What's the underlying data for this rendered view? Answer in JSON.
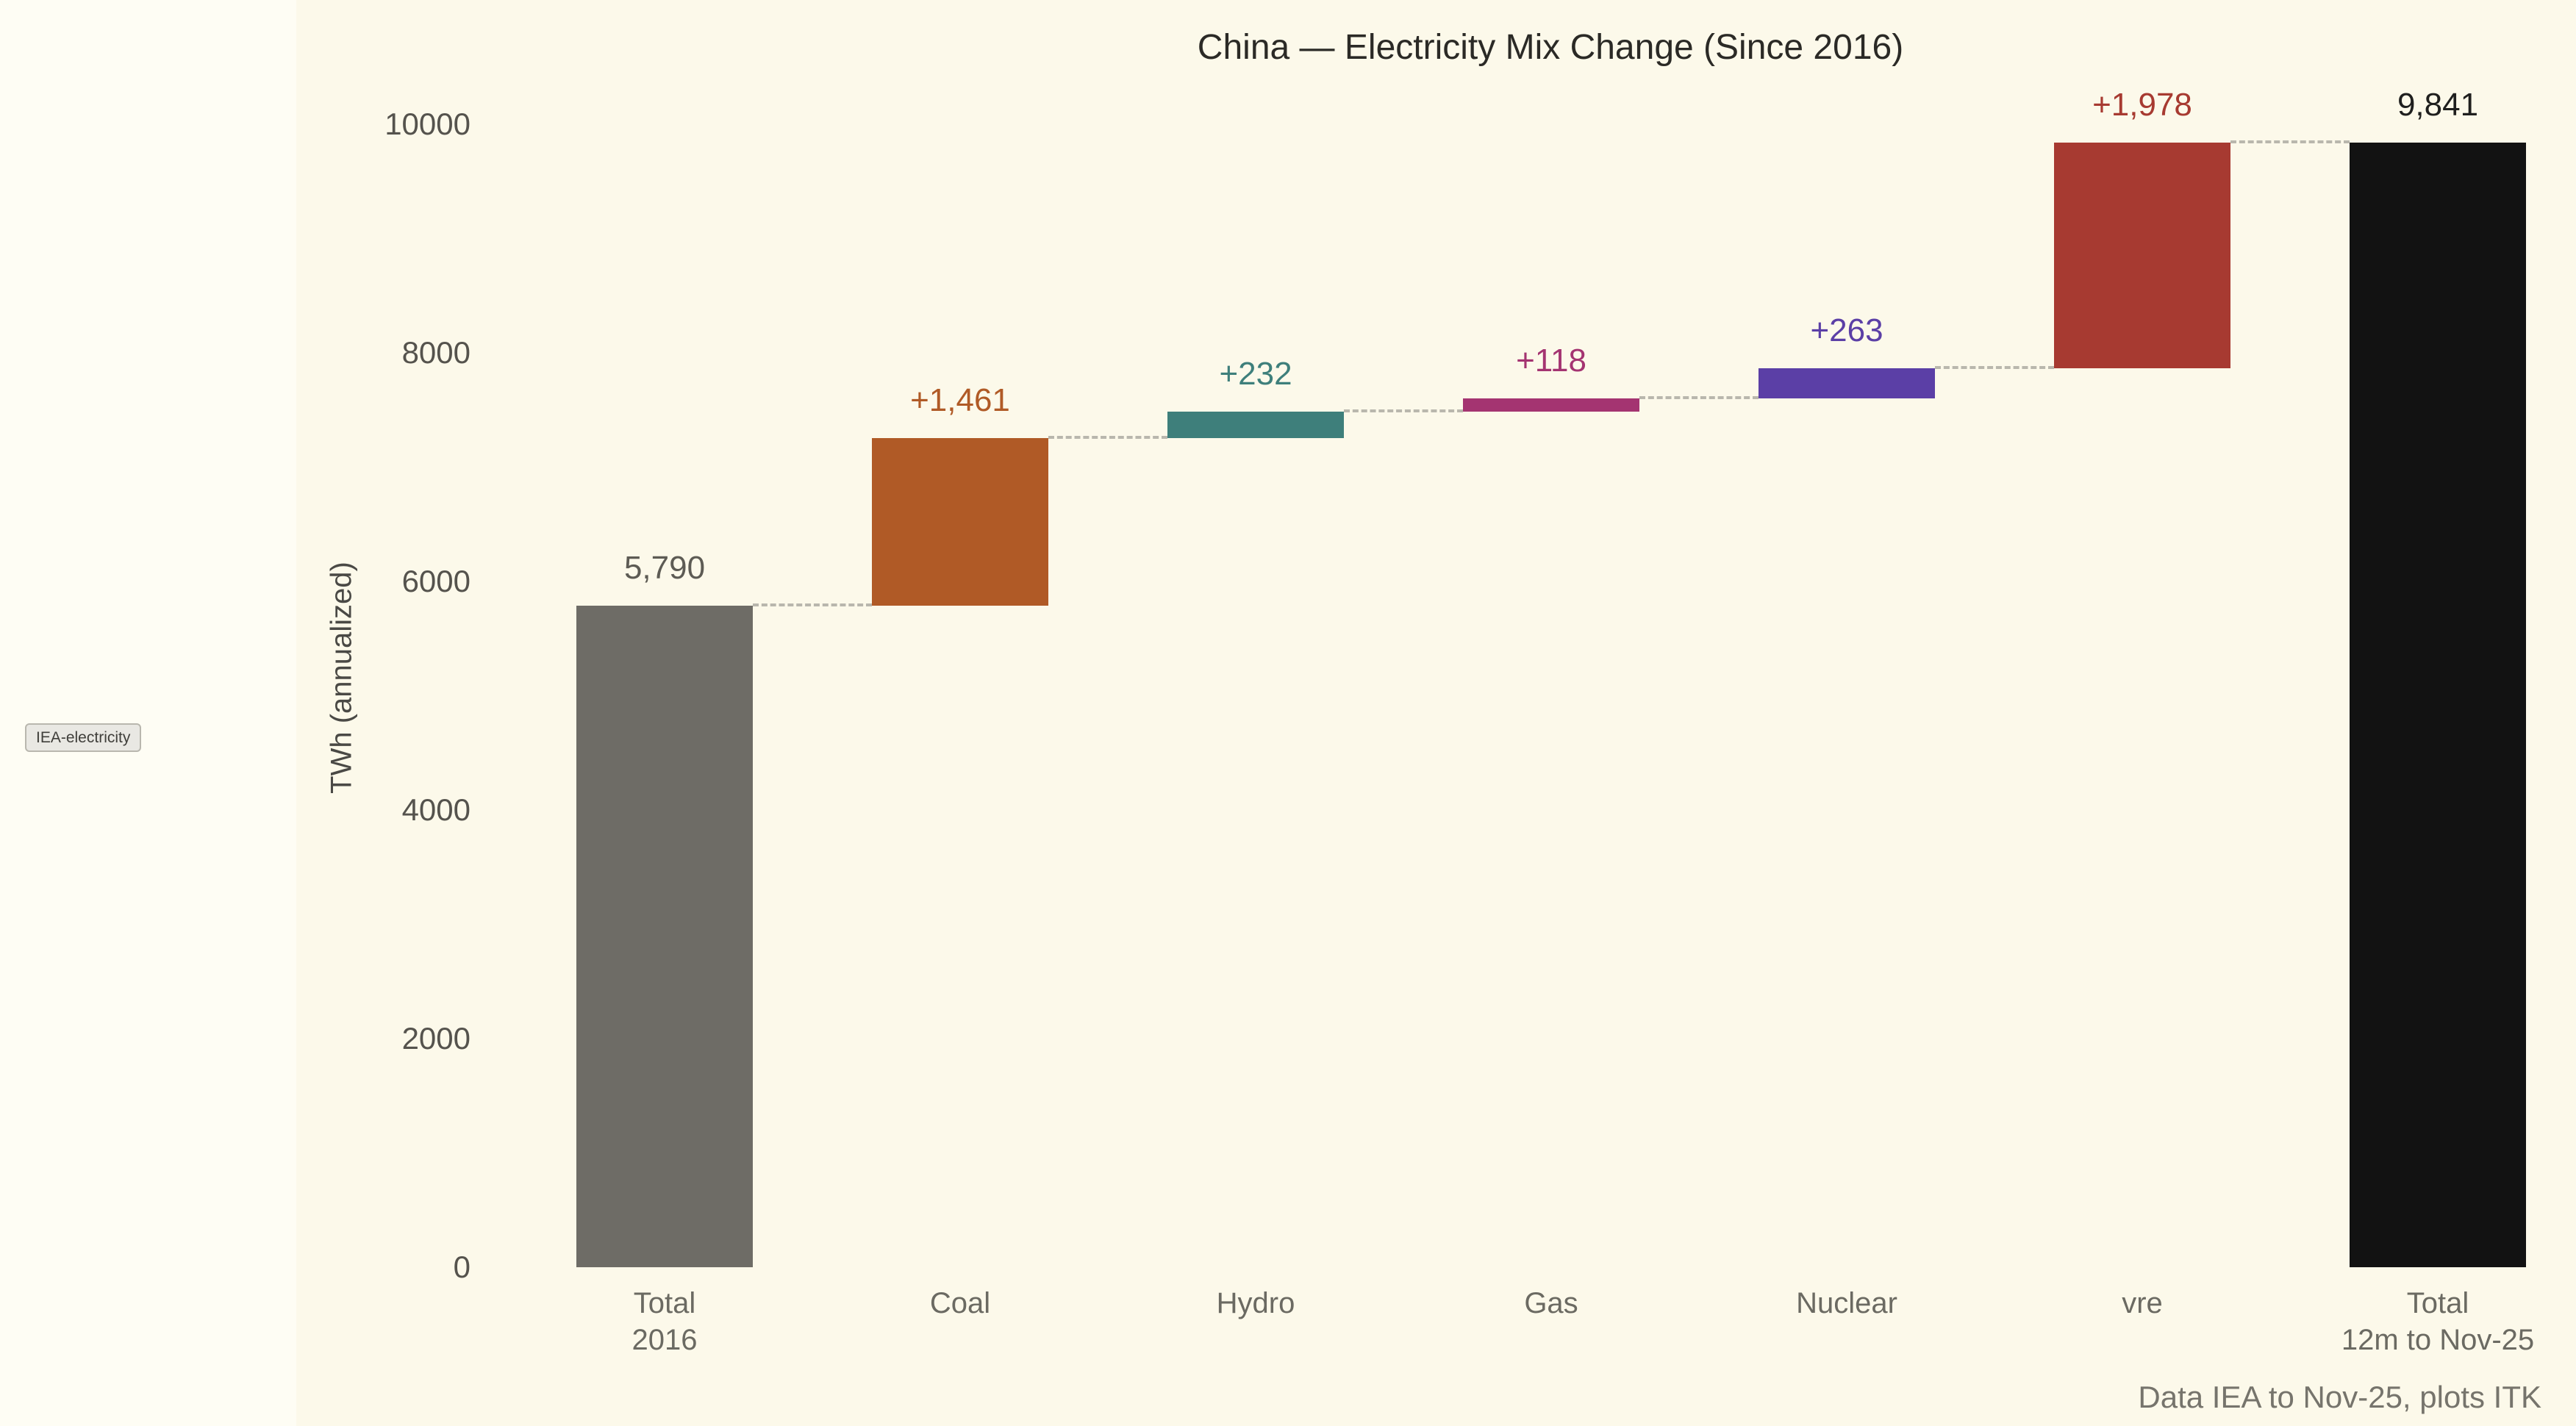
{
  "chart_data": {
    "type": "waterfall",
    "title": "China — Electricity Mix Change (Since 2016)",
    "ylabel": "TWh (annualized)",
    "ylim": [
      0,
      10000
    ],
    "yticks": [
      0,
      2000,
      4000,
      6000,
      8000,
      10000
    ],
    "grid": false,
    "legend": "none",
    "background_color": "#fcf9ea",
    "connector_color": "#b9b7ad",
    "bars": [
      {
        "name": "total-2016",
        "line1": "Total",
        "line2": "2016",
        "kind": "absolute",
        "value": 5790,
        "value_label": "5,790",
        "color": "#6e6c66",
        "value_label_color": "#5d5b54"
      },
      {
        "name": "coal",
        "line1": "Coal",
        "line2": "",
        "kind": "delta",
        "value": 1461,
        "value_label": "+1,461",
        "color": "#b05a26",
        "value_label_color": "#b05a26"
      },
      {
        "name": "hydro",
        "line1": "Hydro",
        "line2": "",
        "kind": "delta",
        "value": 232,
        "value_label": "+232",
        "color": "#3e7f7b",
        "value_label_color": "#3e7f7b"
      },
      {
        "name": "gas",
        "line1": "Gas",
        "line2": "",
        "kind": "delta",
        "value": 118,
        "value_label": "+118",
        "color": "#a43471",
        "value_label_color": "#a43471"
      },
      {
        "name": "nuclear",
        "line1": "Nuclear",
        "line2": "",
        "kind": "delta",
        "value": 263,
        "value_label": "+263",
        "color": "#5b3fa6",
        "value_label_color": "#5b3fa6"
      },
      {
        "name": "vre",
        "line1": "vre",
        "line2": "",
        "kind": "delta",
        "value": 1978,
        "value_label": "+1,978",
        "color": "#a73a31",
        "value_label_color": "#a73a31"
      },
      {
        "name": "total-12m-to-nov-25",
        "line1": "Total",
        "line2": "12m to Nov-25",
        "kind": "absolute",
        "value": 9841,
        "value_label": "9,841",
        "color": "#121212",
        "value_label_color": "#1f1f1e"
      }
    ],
    "source_note": "Data IEA to Nov-25, plots ITK",
    "tag_label": "IEA-electricity"
  }
}
